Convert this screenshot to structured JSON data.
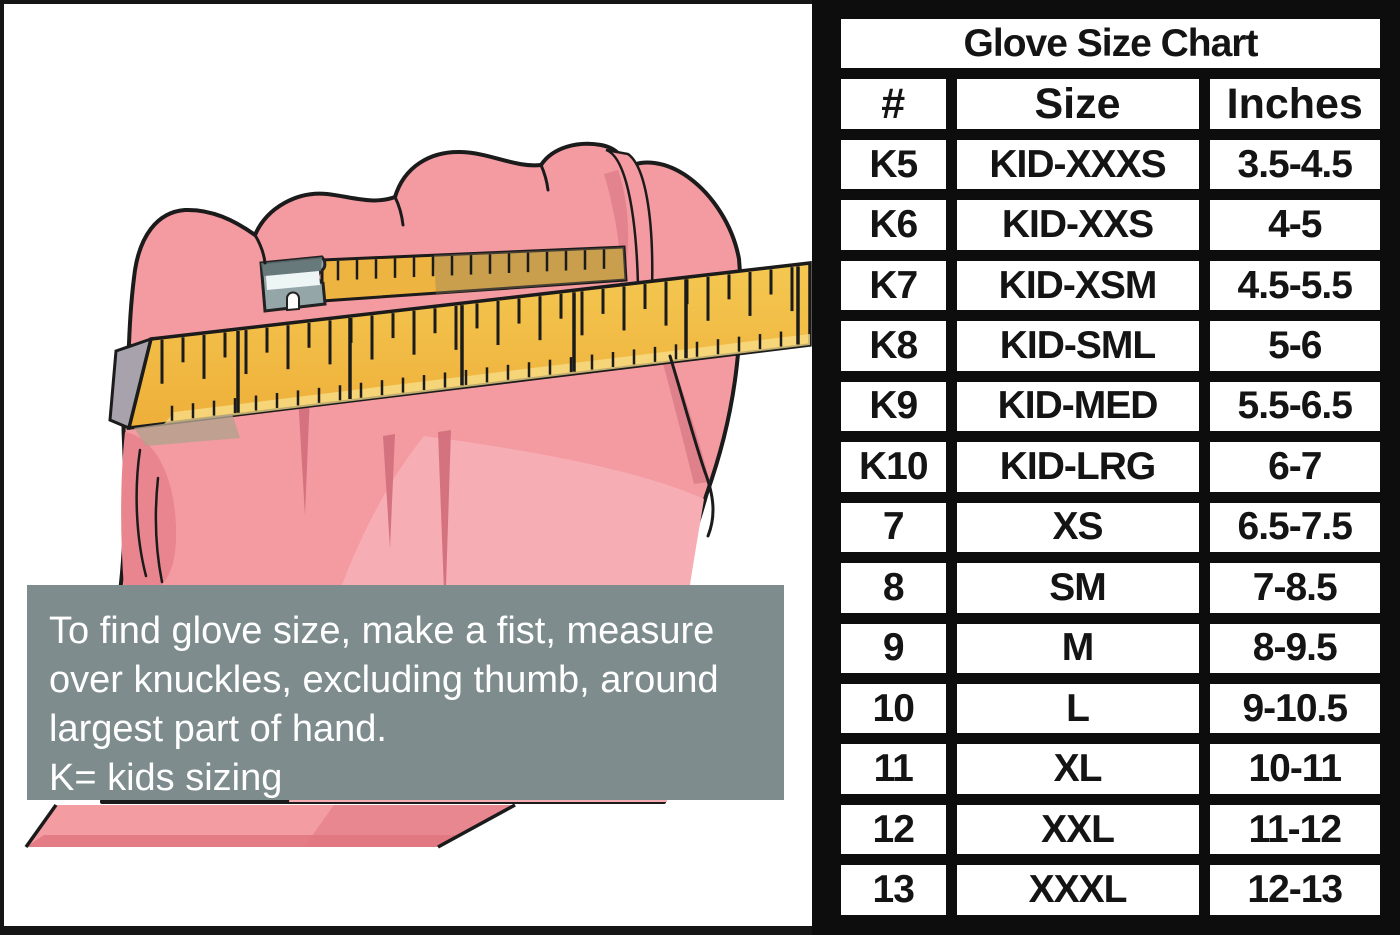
{
  "chart_data": {
    "type": "table",
    "title": "Glove Size Chart",
    "columns": [
      "#",
      "Size",
      "Inches"
    ],
    "rows": [
      [
        "K5",
        "KID-XXXS",
        "3.5-4.5"
      ],
      [
        "K6",
        "KID-XXS",
        "4-5"
      ],
      [
        "K7",
        "KID-XSM",
        "4.5-5.5"
      ],
      [
        "K8",
        "KID-SML",
        "5-6"
      ],
      [
        "K9",
        "KID-MED",
        "5.5-6.5"
      ],
      [
        "K10",
        "KID-LRG",
        "6-7"
      ],
      [
        "7",
        "XS",
        "6.5-7.5"
      ],
      [
        "8",
        "SM",
        "7-8.5"
      ],
      [
        "9",
        "M",
        "8-9.5"
      ],
      [
        "10",
        "L",
        "9-10.5"
      ],
      [
        "11",
        "XL",
        "10-11"
      ],
      [
        "12",
        "XXL",
        "11-12"
      ],
      [
        "13",
        "XXXL",
        "12-13"
      ]
    ]
  },
  "instructions": {
    "lines": [
      "To find glove size, make a fist, measure",
      "over knuckles, excluding thumb, around",
      "largest part of hand.",
      "K= kids sizing"
    ]
  },
  "illustration": {
    "description": "cartoon fist measured over knuckles with yellow tape measure"
  },
  "colors": {
    "table_grid": "#0d0d0d",
    "cell_bg": "#ffffff",
    "note_box_bg": "#7e8c8e",
    "note_text": "#ffffff",
    "hand_pink": "#f49ba2",
    "hand_pink_light": "#f6aeb4",
    "hand_pink_dark": "#e9858f",
    "tape_yellow": "#f1bb42",
    "tape_highlight": "#f8df8c",
    "clip_gray": "#94a6a8",
    "tape_end_gray": "#a8a2ac",
    "outline": "#1b1b1b"
  }
}
